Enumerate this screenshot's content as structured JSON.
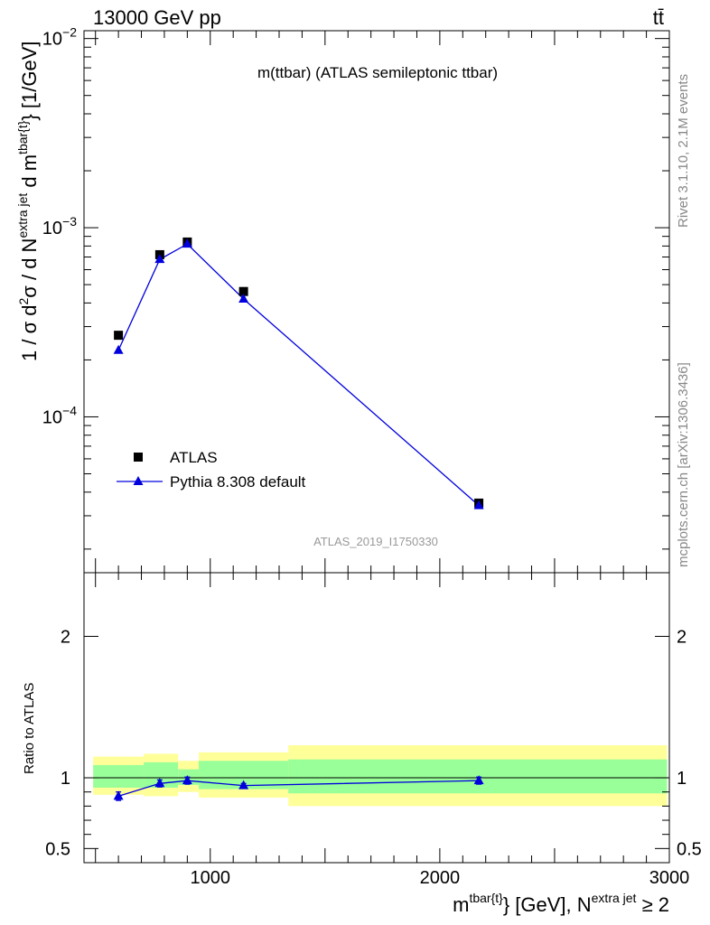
{
  "header": {
    "left": "13000 GeV pp",
    "right": "tt̄"
  },
  "side_labels": {
    "rivet": "Rivet 3.1.10,  2.1M events",
    "url": "mcplots.cern.ch [arXiv:1306.3436]"
  },
  "chart_data": [
    {
      "type": "scatter",
      "title": "m(ttbar) (ATLAS semileptonic ttbar)",
      "watermark": "ATLAS_2019_I1750330",
      "ylabel": {
        "prefix": "1 / σ d",
        "sup1": "2",
        "mid": "σ / d N",
        "sup2": "extra jet",
        "mid2": " d m",
        "sup3": "tbar{t}",
        "unit": "} [1/GeV]"
      },
      "xlim": [
        450,
        3000
      ],
      "ylog": true,
      "ylim": [
        1.5e-05,
        0.011
      ],
      "yticks": [
        {
          "value": 0.0001,
          "mant": "10",
          "exp": "−4"
        },
        {
          "value": 0.001,
          "mant": "10",
          "exp": "−3"
        },
        {
          "value": 0.01,
          "mant": "10",
          "exp": "−2"
        }
      ],
      "legend": {
        "position": "bottom-left",
        "entries": [
          "ATLAS",
          "Pythia 8.308 default"
        ]
      },
      "series": [
        {
          "name": "ATLAS",
          "marker": "square",
          "color": "#000000",
          "x": [
            600,
            780,
            900,
            1145,
            2170
          ],
          "y": [
            0.00027,
            0.00072,
            0.00084,
            0.00046,
            3.5e-05
          ]
        },
        {
          "name": "Pythia 8.308 default",
          "marker": "triangle",
          "color": "#0000dd",
          "x": [
            600,
            780,
            900,
            1145,
            2170
          ],
          "y": [
            0.000225,
            0.00068,
            0.00082,
            0.00042,
            3.4e-05
          ]
        }
      ]
    },
    {
      "type": "scatter",
      "ylabel": "Ratio to ATLAS",
      "xlabel": {
        "m": "m",
        "sup1": "tbar{t}",
        "mid": "} [GeV], N",
        "sup2": "extra jet",
        "tail": " ≥ 2"
      },
      "xlim": [
        450,
        3000
      ],
      "ylim": [
        0.4,
        2.45
      ],
      "xticks": [
        1000,
        2000,
        3000
      ],
      "yticks": [
        0.5,
        1,
        2
      ],
      "reference_line": 1,
      "bands": [
        {
          "x0": 490,
          "x1": 710,
          "inner": [
            0.93,
            1.09
          ],
          "outer": [
            0.88,
            1.15
          ]
        },
        {
          "x0": 710,
          "x1": 860,
          "inner": [
            0.93,
            1.11
          ],
          "outer": [
            0.87,
            1.17
          ]
        },
        {
          "x0": 860,
          "x1": 950,
          "inner": [
            0.95,
            1.06
          ],
          "outer": [
            0.9,
            1.12
          ]
        },
        {
          "x0": 950,
          "x1": 1340,
          "inner": [
            0.92,
            1.12
          ],
          "outer": [
            0.86,
            1.18
          ]
        },
        {
          "x0": 1340,
          "x1": 2990,
          "inner": [
            0.89,
            1.13
          ],
          "outer": [
            0.8,
            1.23
          ]
        }
      ],
      "band_colors": {
        "inner": "#99ff99",
        "outer": "#ffff99"
      },
      "series": [
        {
          "name": "Pythia 8.308 default",
          "color": "#0000dd",
          "x": [
            600,
            780,
            900,
            1145,
            2170
          ],
          "y": [
            0.87,
            0.96,
            0.98,
            0.945,
            0.98
          ],
          "err": [
            0.03,
            0.025,
            0.025,
            0.015,
            0.025
          ]
        }
      ]
    }
  ]
}
